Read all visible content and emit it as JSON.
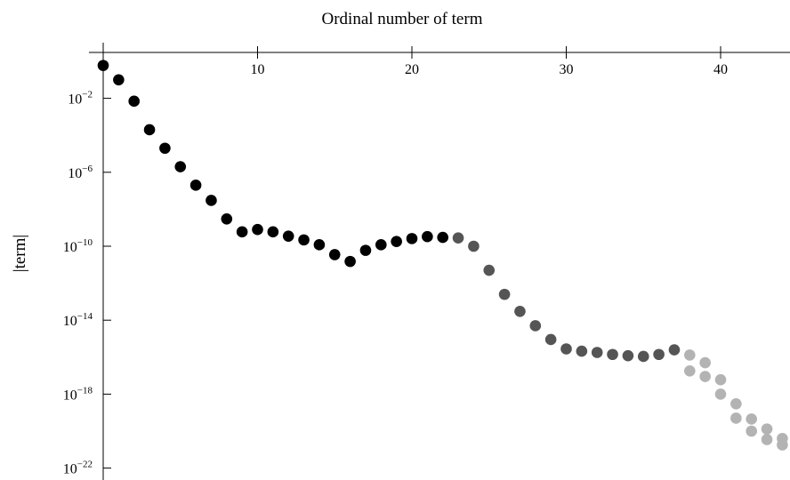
{
  "chart_data": {
    "type": "scatter",
    "xlabel": "Ordinal number of term",
    "ylabel": "|term|",
    "x_axis_position": "top",
    "y_scale": "log",
    "xlim": [
      0,
      44
    ],
    "ylim": [
      1e-23,
      10.0
    ],
    "x_ticks": [
      10,
      20,
      30,
      40
    ],
    "x_tick_labels": [
      "10",
      "20",
      "30",
      "40"
    ],
    "y_ticks": [
      0.01,
      1e-06,
      1e-10,
      1e-14,
      1e-18,
      1e-22
    ],
    "y_tick_labels": [
      {
        "base": "10",
        "exp": "−2"
      },
      {
        "base": "10",
        "exp": "−6"
      },
      {
        "base": "10",
        "exp": "−10"
      },
      {
        "base": "10",
        "exp": "−14"
      },
      {
        "base": "10",
        "exp": "−18"
      },
      {
        "base": "10",
        "exp": "−22"
      }
    ],
    "grid": false,
    "series": [
      {
        "color": "#000000",
        "points": [
          {
            "x": 0,
            "y": 0.6
          },
          {
            "x": 1,
            "y": 0.1
          },
          {
            "x": 2,
            "y": 0.007
          },
          {
            "x": 3,
            "y": 0.0002
          },
          {
            "x": 4,
            "y": 2e-05
          },
          {
            "x": 5,
            "y": 2e-06
          },
          {
            "x": 6,
            "y": 2e-07
          },
          {
            "x": 7,
            "y": 3e-08
          },
          {
            "x": 8,
            "y": 3e-09
          },
          {
            "x": 9,
            "y": 6e-10
          },
          {
            "x": 10,
            "y": 8e-10
          },
          {
            "x": 11,
            "y": 6e-10
          },
          {
            "x": 12,
            "y": 3.5e-10
          },
          {
            "x": 13,
            "y": 2.2e-10
          },
          {
            "x": 14,
            "y": 1.2e-10
          },
          {
            "x": 15,
            "y": 3.5e-11
          },
          {
            "x": 16,
            "y": 1.5e-11
          },
          {
            "x": 17,
            "y": 6e-11
          },
          {
            "x": 18,
            "y": 1.2e-10
          },
          {
            "x": 19,
            "y": 1.8e-10
          },
          {
            "x": 20,
            "y": 2.6e-10
          },
          {
            "x": 21,
            "y": 3.3e-10
          },
          {
            "x": 22,
            "y": 3e-10
          }
        ]
      },
      {
        "color": "#555555",
        "points": [
          {
            "x": 23,
            "y": 2.8e-10
          },
          {
            "x": 24,
            "y": 1e-10
          },
          {
            "x": 25,
            "y": 5e-12
          },
          {
            "x": 26,
            "y": 2.5e-13
          },
          {
            "x": 27,
            "y": 3e-14
          },
          {
            "x": 28,
            "y": 5e-15
          },
          {
            "x": 29,
            "y": 9e-16
          },
          {
            "x": 30,
            "y": 2.8e-16
          },
          {
            "x": 31,
            "y": 2.1e-16
          },
          {
            "x": 32,
            "y": 1.8e-16
          },
          {
            "x": 33,
            "y": 1.4e-16
          },
          {
            "x": 34,
            "y": 1.2e-16
          },
          {
            "x": 35,
            "y": 1.1e-16
          },
          {
            "x": 36,
            "y": 1.4e-16
          },
          {
            "x": 37,
            "y": 2.5e-16
          }
        ]
      },
      {
        "color": "#b3b3b3",
        "points": [
          {
            "x": 38,
            "y": 1.3e-16
          },
          {
            "x": 38,
            "y": 1.8e-17
          },
          {
            "x": 39,
            "y": 5e-17
          },
          {
            "x": 39,
            "y": 9e-18
          },
          {
            "x": 40,
            "y": 6e-18
          },
          {
            "x": 40,
            "y": 1e-18
          },
          {
            "x": 41,
            "y": 3e-19
          },
          {
            "x": 41,
            "y": 5e-20
          },
          {
            "x": 42,
            "y": 4.5e-20
          },
          {
            "x": 42,
            "y": 1e-20
          },
          {
            "x": 43,
            "y": 1.3e-20
          },
          {
            "x": 43,
            "y": 3.5e-21
          },
          {
            "x": 44,
            "y": 4e-21
          },
          {
            "x": 44,
            "y": 1.8e-21
          }
        ]
      }
    ]
  }
}
